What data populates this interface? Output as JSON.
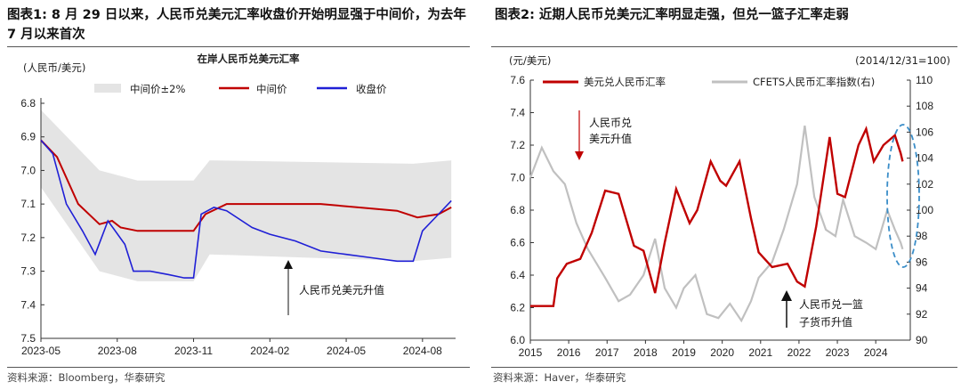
{
  "panel1": {
    "heading": "图表1:  8 月 29 日以来，人民币兑美元汇率收盘价开始明显强于中间价，为去年 7 月以来首次",
    "source": "资料来源：Bloomberg，华泰研究",
    "chart_data": {
      "type": "line",
      "title": "在岸人民币兑美元汇率",
      "ylabel": "(人民币/美元)",
      "y_inverted": true,
      "ylim": [
        6.8,
        7.5
      ],
      "y_ticks": [
        "6.8",
        "6.9",
        "7.0",
        "7.1",
        "7.2",
        "7.3",
        "7.4",
        "7.5"
      ],
      "x_ticks": [
        "2023-05",
        "2023-08",
        "2023-11",
        "2024-02",
        "2024-05",
        "2024-08"
      ],
      "legend": [
        "中间价±2%",
        "中间价",
        "收盘价"
      ],
      "legend_position": "top",
      "annotation": "人民币兑美元升值",
      "colors": {
        "band": "#e4e4e4",
        "mid": "#c00000",
        "close": "#1f1fd6"
      },
      "series": [
        {
          "name": "中间价",
          "points": [
            [
              "2023-05-01",
              6.91
            ],
            [
              "2023-05-20",
              6.96
            ],
            [
              "2023-06-15",
              7.1
            ],
            [
              "2023-07-10",
              7.16
            ],
            [
              "2023-07-25",
              7.15
            ],
            [
              "2023-08-05",
              7.17
            ],
            [
              "2023-08-25",
              7.18
            ],
            [
              "2023-10-15",
              7.18
            ],
            [
              "2023-11-01",
              7.18
            ],
            [
              "2023-11-15",
              7.13
            ],
            [
              "2023-12-10",
              7.1
            ],
            [
              "2024-01-05",
              7.1
            ],
            [
              "2024-02-15",
              7.1
            ],
            [
              "2024-04-01",
              7.1
            ],
            [
              "2024-05-15",
              7.11
            ],
            [
              "2024-07-01",
              7.12
            ],
            [
              "2024-07-25",
              7.14
            ],
            [
              "2024-08-20",
              7.13
            ],
            [
              "2024-09-05",
              7.11
            ]
          ]
        },
        {
          "name": "收盘价",
          "points": [
            [
              "2023-05-01",
              6.91
            ],
            [
              "2023-05-15",
              6.95
            ],
            [
              "2023-06-01",
              7.1
            ],
            [
              "2023-06-20",
              7.18
            ],
            [
              "2023-07-05",
              7.25
            ],
            [
              "2023-07-20",
              7.15
            ],
            [
              "2023-08-10",
              7.22
            ],
            [
              "2023-08-20",
              7.3
            ],
            [
              "2023-09-10",
              7.3
            ],
            [
              "2023-10-01",
              7.31
            ],
            [
              "2023-10-20",
              7.32
            ],
            [
              "2023-11-01",
              7.32
            ],
            [
              "2023-11-10",
              7.13
            ],
            [
              "2023-11-25",
              7.11
            ],
            [
              "2023-12-10",
              7.12
            ],
            [
              "2024-01-10",
              7.17
            ],
            [
              "2024-02-01",
              7.19
            ],
            [
              "2024-03-01",
              7.21
            ],
            [
              "2024-04-01",
              7.24
            ],
            [
              "2024-05-01",
              7.25
            ],
            [
              "2024-06-01",
              7.26
            ],
            [
              "2024-07-01",
              7.27
            ],
            [
              "2024-07-20",
              7.27
            ],
            [
              "2024-08-01",
              7.18
            ],
            [
              "2024-08-20",
              7.13
            ],
            [
              "2024-09-05",
              7.09
            ]
          ]
        },
        {
          "name": "中间价±2%",
          "upper": [
            [
              "2023-05-01",
              6.82
            ],
            [
              "2023-07-10",
              7.0
            ],
            [
              "2023-08-25",
              7.03
            ],
            [
              "2023-11-01",
              7.03
            ],
            [
              "2023-11-20",
              6.97
            ],
            [
              "2024-07-20",
              6.98
            ],
            [
              "2024-09-05",
              6.97
            ]
          ],
          "lower": [
            [
              "2023-05-01",
              7.05
            ],
            [
              "2023-07-10",
              7.3
            ],
            [
              "2023-08-25",
              7.33
            ],
            [
              "2023-11-01",
              7.33
            ],
            [
              "2023-11-20",
              7.25
            ],
            [
              "2024-07-20",
              7.27
            ],
            [
              "2024-09-05",
              7.26
            ]
          ]
        }
      ]
    }
  },
  "panel2": {
    "heading": "图表2:  近期人民币兑美元汇率明显走强，但兑一篮子汇率走弱",
    "source": "资料来源：Haver，华泰研究",
    "chart_data": {
      "type": "line",
      "ylabel_left": "(元/美元)",
      "ylabel_right": "(2014/12/31=100)",
      "ylim_left": [
        6.0,
        7.6
      ],
      "ylim_right": [
        90,
        110
      ],
      "y_ticks_left": [
        "6.0",
        "6.2",
        "6.4",
        "6.6",
        "6.8",
        "7.0",
        "7.2",
        "7.4",
        "7.6"
      ],
      "y_ticks_right": [
        "90",
        "92",
        "94",
        "96",
        "98",
        "100",
        "102",
        "104",
        "106",
        "108",
        "110"
      ],
      "x_ticks": [
        "2015",
        "2016",
        "2017",
        "2018",
        "2019",
        "2020",
        "2021",
        "2022",
        "2023",
        "2024"
      ],
      "legend": [
        "美元兑人民币汇率",
        "CFETS人民币汇率指数(右)"
      ],
      "legend_position": "top",
      "annotations": [
        "人民币兑美元升值",
        "人民币兑一篮子货币升值"
      ],
      "colors": {
        "usdcny": "#c00000",
        "cfets": "#c0c0c0",
        "circle": "#3a8dc8"
      },
      "series": [
        {
          "name": "美元兑人民币汇率",
          "axis": "left",
          "points": [
            [
              2015.0,
              6.21
            ],
            [
              2015.6,
              6.21
            ],
            [
              2015.7,
              6.38
            ],
            [
              2015.95,
              6.47
            ],
            [
              2016.3,
              6.5
            ],
            [
              2016.6,
              6.66
            ],
            [
              2016.95,
              6.92
            ],
            [
              2017.3,
              6.9
            ],
            [
              2017.7,
              6.58
            ],
            [
              2017.95,
              6.55
            ],
            [
              2018.25,
              6.29
            ],
            [
              2018.5,
              6.6
            ],
            [
              2018.8,
              6.93
            ],
            [
              2019.15,
              6.72
            ],
            [
              2019.35,
              6.8
            ],
            [
              2019.7,
              7.1
            ],
            [
              2019.95,
              6.98
            ],
            [
              2020.1,
              6.95
            ],
            [
              2020.45,
              7.1
            ],
            [
              2020.75,
              6.75
            ],
            [
              2020.95,
              6.54
            ],
            [
              2021.3,
              6.45
            ],
            [
              2021.7,
              6.47
            ],
            [
              2021.95,
              6.36
            ],
            [
              2022.15,
              6.33
            ],
            [
              2022.45,
              6.7
            ],
            [
              2022.8,
              7.25
            ],
            [
              2023.0,
              6.9
            ],
            [
              2023.2,
              6.88
            ],
            [
              2023.55,
              7.2
            ],
            [
              2023.75,
              7.3
            ],
            [
              2023.95,
              7.1
            ],
            [
              2024.2,
              7.2
            ],
            [
              2024.5,
              7.26
            ],
            [
              2024.65,
              7.15
            ],
            [
              2024.7,
              7.1
            ]
          ]
        },
        {
          "name": "CFETS人民币汇率指数(右)",
          "axis": "right",
          "points": [
            [
              2015.0,
              102.5
            ],
            [
              2015.3,
              104.8
            ],
            [
              2015.6,
              103.0
            ],
            [
              2015.9,
              102.0
            ],
            [
              2016.2,
              99.0
            ],
            [
              2016.5,
              97.0
            ],
            [
              2016.95,
              94.8
            ],
            [
              2017.3,
              93.0
            ],
            [
              2017.6,
              93.5
            ],
            [
              2017.95,
              95.0
            ],
            [
              2018.25,
              97.8
            ],
            [
              2018.5,
              94.0
            ],
            [
              2018.8,
              92.5
            ],
            [
              2019.0,
              94.0
            ],
            [
              2019.3,
              95.0
            ],
            [
              2019.6,
              92.0
            ],
            [
              2019.9,
              91.7
            ],
            [
              2020.2,
              92.8
            ],
            [
              2020.5,
              91.5
            ],
            [
              2020.75,
              93.0
            ],
            [
              2020.95,
              94.8
            ],
            [
              2021.3,
              96.0
            ],
            [
              2021.6,
              98.5
            ],
            [
              2021.95,
              102.0
            ],
            [
              2022.15,
              106.5
            ],
            [
              2022.4,
              101.0
            ],
            [
              2022.7,
              98.5
            ],
            [
              2022.95,
              98.0
            ],
            [
              2023.15,
              100.8
            ],
            [
              2023.45,
              98.0
            ],
            [
              2023.75,
              97.5
            ],
            [
              2024.0,
              97.0
            ],
            [
              2024.3,
              100.0
            ],
            [
              2024.5,
              98.5
            ],
            [
              2024.65,
              97.5
            ],
            [
              2024.7,
              97.0
            ]
          ]
        }
      ]
    }
  }
}
